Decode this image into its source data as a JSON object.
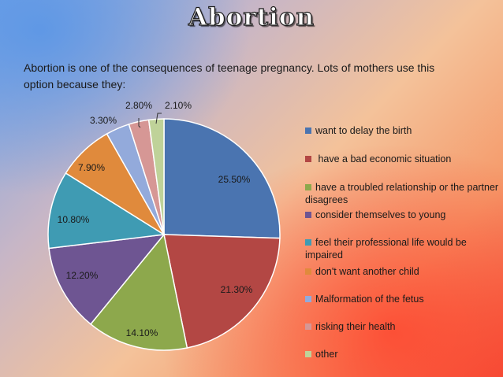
{
  "title": "Abortion",
  "subtitle": "Abortion is one of the consequences of teenage pregnancy.  Lots of mothers use this option because they:",
  "chart_data": {
    "type": "pie",
    "title": "",
    "legend_position": "right",
    "start_angle_deg": 0,
    "direction": "clockwise",
    "slices": [
      {
        "label": "want to delay the birth",
        "value": 25.5,
        "display": "25.50%",
        "color": "#4a74b0"
      },
      {
        "label": " have a bad economic situation",
        "value": 21.3,
        "display": "21.30%",
        "color": "#b34744"
      },
      {
        "label": "have a troubled relationship or the partner disagrees",
        "value": 14.1,
        "display": "14.10%",
        "color": "#8da84c"
      },
      {
        "label": "consider themselves to young",
        "value": 12.2,
        "display": "12.20%",
        "color": "#6e5592"
      },
      {
        "label": "feel their professional life would be impaired",
        "value": 10.8,
        "display": "10.80%",
        "color": "#3f9bb3"
      },
      {
        "label": "don't want another child",
        "value": 7.9,
        "display": "7.90%",
        "color": "#e08a3c"
      },
      {
        "label": "Malformation of the fetus",
        "value": 3.3,
        "display": "3.30%",
        "color": "#93aadb"
      },
      {
        "label": "risking their health",
        "value": 2.8,
        "display": "2.80%",
        "color": "#d69795"
      },
      {
        "label": "other",
        "value": 2.1,
        "display": "2.10%",
        "color": "#bfd299"
      }
    ]
  }
}
